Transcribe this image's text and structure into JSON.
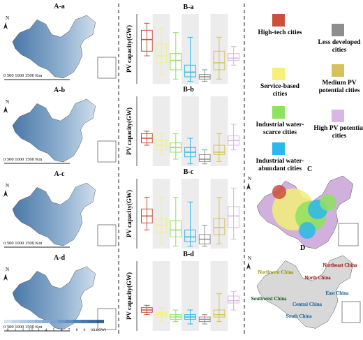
{
  "legend": [
    {
      "name": "High-tech cities",
      "color": "#cc4e3c"
    },
    {
      "name": "Less developed cities",
      "color": "#8e8e8e"
    },
    {
      "name": "Service-based cities",
      "color": "#f4f07a"
    },
    {
      "name": "Medium PV potential cities",
      "color": "#d6c25c"
    },
    {
      "name": "Industrial water-scarce cities",
      "color": "#8de25f"
    },
    {
      "name": "High PV potential cities",
      "color": "#d9b6e3"
    },
    {
      "name": "Industrial water-abundant cities",
      "color": "#2bb9ea"
    }
  ],
  "maps": {
    "panels": [
      {
        "label": "A-a",
        "north": "N",
        "scale": "0   500 1000 1500  Km"
      },
      {
        "label": "A-b",
        "north": "N",
        "scale": "0   500 1000 1500  Km"
      },
      {
        "label": "A-c",
        "north": "N",
        "scale": "0   500 1000 1500  Km"
      },
      {
        "label": "A-d",
        "north": "N",
        "scale": "0   500 1000 1500 Km"
      }
    ],
    "colorbar": [
      "0",
      "1",
      "2",
      "2.5",
      "3",
      "4",
      "5",
      "6",
      "7",
      "8",
      "9",
      "10",
      "14(GW)"
    ],
    "map_c": {
      "label": "C",
      "north": "N"
    },
    "map_d": {
      "label": "D",
      "north": "N",
      "regions": [
        "Northwest China",
        "Northeast China",
        "North China",
        "Southwest China",
        "Central China",
        "East China",
        "South China"
      ]
    }
  },
  "chart_data": [
    {
      "type": "box",
      "title": "B-a",
      "y_label": "PV capacity(GW)",
      "ylim": [
        0,
        15
      ],
      "legend_order": [
        0,
        2,
        4,
        6,
        1,
        3,
        5
      ],
      "boxes": [
        [
          6,
          7,
          9.5,
          11.5,
          13
        ],
        [
          2,
          4.5,
          6,
          8.5,
          12
        ],
        [
          1,
          3,
          5,
          6.5,
          11
        ],
        [
          0.5,
          1.5,
          2.5,
          4,
          10
        ],
        [
          0.5,
          1,
          1.5,
          2,
          3
        ],
        [
          1,
          3,
          4.5,
          7,
          10
        ],
        [
          4,
          5,
          5.5,
          6.5,
          8
        ]
      ]
    },
    {
      "type": "box",
      "title": "B-b",
      "y_label": "PV capacity(GW)",
      "ylim": [
        0,
        15
      ],
      "legend_order": [
        0,
        2,
        4,
        6,
        1,
        3,
        5
      ],
      "boxes": [
        [
          4.5,
          5,
          6,
          7,
          7.5
        ],
        [
          2.5,
          3.5,
          4.5,
          5.5,
          7
        ],
        [
          1.5,
          3,
          4,
          5,
          7
        ],
        [
          0.5,
          2,
          3,
          4,
          6
        ],
        [
          0.5,
          1,
          1.5,
          2.5,
          3.5
        ],
        [
          1,
          2.5,
          3,
          4.5,
          7
        ],
        [
          3.5,
          4.5,
          5.5,
          6.5,
          9
        ]
      ]
    },
    {
      "type": "box",
      "title": "B-c",
      "y_label": "PV capacity(GW)",
      "ylim": [
        0,
        15
      ],
      "legend_order": [
        0,
        2,
        4,
        6,
        1,
        3,
        5
      ],
      "boxes": [
        [
          4,
          5.5,
          7,
          8.5,
          11
        ],
        [
          1,
          3.5,
          5,
          6.5,
          11
        ],
        [
          0.5,
          2.5,
          4,
          6,
          11
        ],
        [
          0.5,
          1.5,
          2.5,
          4,
          10
        ],
        [
          0.5,
          1,
          2,
          3,
          5
        ],
        [
          1,
          3,
          4.5,
          6.5,
          11
        ],
        [
          2,
          4.5,
          7,
          9,
          13
        ]
      ]
    },
    {
      "type": "box",
      "title": "B-d",
      "y_label": "PV capacity(GW)",
      "ylim": [
        0,
        15
      ],
      "legend_order": [
        0,
        2,
        4,
        6,
        1,
        3,
        5
      ],
      "boxes": [
        [
          3.5,
          4,
          4.5,
          5,
          5.5
        ],
        [
          2,
          3,
          3.5,
          4,
          5
        ],
        [
          2,
          2.5,
          3,
          3.5,
          4.5
        ],
        [
          1.5,
          2.5,
          3,
          3.5,
          4.5
        ],
        [
          1.5,
          2,
          2.5,
          3,
          3.5
        ],
        [
          2,
          3,
          3.5,
          4.5,
          8
        ],
        [
          4.5,
          6,
          6.5,
          7.5,
          8.5
        ]
      ]
    }
  ]
}
